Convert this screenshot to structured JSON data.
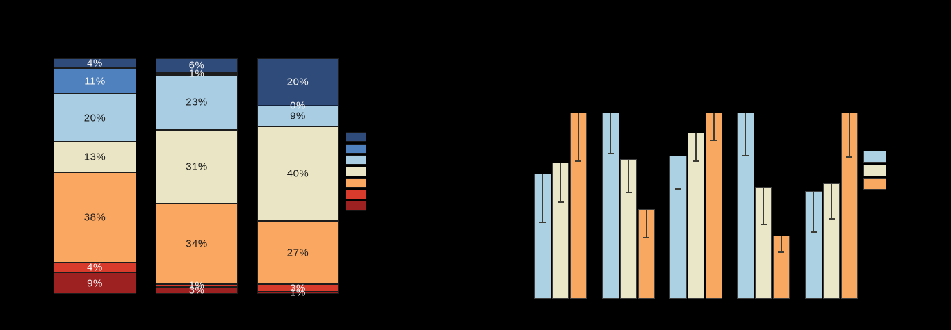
{
  "background": "#000000",
  "chart_data": [
    {
      "id": "left-stacked-bar",
      "type": "bar",
      "subtype": "stacked-percentage-columns",
      "title": "",
      "categories": [
        "",
        "",
        ""
      ],
      "value_suffix": "%",
      "ylim": [
        0,
        100
      ],
      "grid": false,
      "legend_position": "right",
      "legend_labels_visible": false,
      "series": [
        {
          "name": "segment-dark-navy",
          "color": "#2E4B7A",
          "label_color": "#F5F5F5",
          "values": [
            4,
            6,
            20
          ]
        },
        {
          "name": "segment-medium-blue",
          "color": "#4E81BD",
          "label_color": "#F5F5F5",
          "values": [
            11,
            1,
            0
          ]
        },
        {
          "name": "segment-light-blue",
          "color": "#A9CDE2",
          "label_color": "#1a1a1a",
          "values": [
            20,
            23,
            9
          ]
        },
        {
          "name": "segment-cream",
          "color": "#EAE6C5",
          "label_color": "#1a1a1a",
          "values": [
            13,
            31,
            40
          ]
        },
        {
          "name": "segment-orange",
          "color": "#F9A761",
          "label_color": "#1a1a1a",
          "values": [
            38,
            34,
            27
          ]
        },
        {
          "name": "segment-red",
          "color": "#D83A2B",
          "label_color": "#F5F5F5",
          "values": [
            4,
            1,
            3
          ]
        },
        {
          "name": "segment-dark-red",
          "color": "#9E2121",
          "label_color": "#F5F5F5",
          "values": [
            9,
            3,
            1
          ]
        }
      ]
    },
    {
      "id": "right-grouped-bar",
      "type": "bar",
      "subtype": "grouped-with-lower-error-bars",
      "title": "",
      "categories": [
        "",
        "",
        "",
        "",
        ""
      ],
      "ylim": [
        0,
        1
      ],
      "grid": false,
      "legend_position": "right",
      "legend_labels_visible": false,
      "series": [
        {
          "name": "series-light-blue",
          "color": "#ACD1E3",
          "values": [
            0.67,
            1.0,
            0.77,
            1.0,
            0.58
          ],
          "error_lower": [
            0.26,
            0.22,
            0.18,
            0.23,
            0.22
          ]
        },
        {
          "name": "series-cream",
          "color": "#EAE6C8",
          "values": [
            0.73,
            0.75,
            0.89,
            0.6,
            0.62
          ],
          "error_lower": [
            0.21,
            0.18,
            0.15,
            0.2,
            0.19
          ]
        },
        {
          "name": "series-orange",
          "color": "#F9A862",
          "values": [
            1.0,
            0.48,
            1.0,
            0.34,
            1.0
          ],
          "error_lower": [
            0.26,
            0.15,
            0.15,
            0.09,
            0.24
          ]
        }
      ]
    }
  ]
}
